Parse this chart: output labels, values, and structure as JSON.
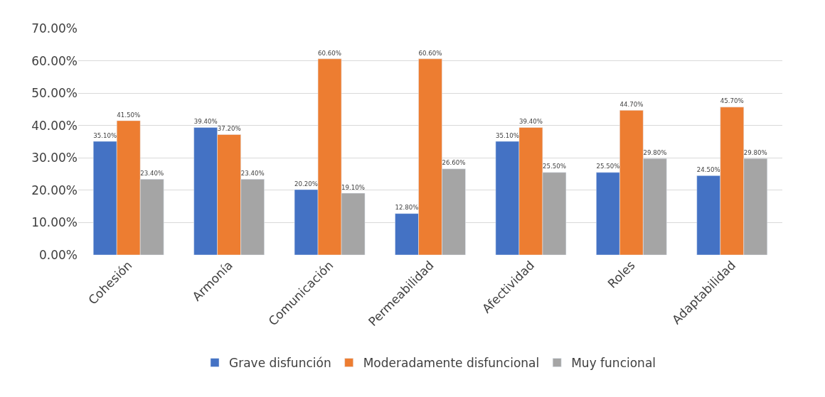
{
  "chart_data": {
    "type": "bar",
    "categories": [
      "Cohesión",
      "Armonía",
      "Comunicación",
      "Permeabilidad",
      "Afectividad",
      "Roles",
      "Adaptabilidad"
    ],
    "series": [
      {
        "name": "Grave disfunción",
        "color": "#4472c4",
        "values": [
          35.1,
          39.4,
          20.2,
          12.8,
          35.1,
          25.5,
          24.5
        ],
        "value_labels": [
          "35.10%",
          "39.40%",
          "20.20%",
          "12.80%",
          "35.10%",
          "25.50%",
          "24.50%"
        ]
      },
      {
        "name": "Moderadamente disfuncional",
        "color": "#ed7d31",
        "values": [
          41.5,
          37.2,
          60.6,
          60.6,
          39.4,
          44.7,
          45.7
        ],
        "value_labels": [
          "41.50%",
          "37.20%",
          "60.60%",
          "60.60%",
          "39.40%",
          "44.70%",
          "45.70%"
        ]
      },
      {
        "name": "Muy funcional",
        "color": "#a5a5a5",
        "values": [
          23.4,
          23.4,
          19.1,
          26.6,
          25.5,
          29.8,
          29.8
        ],
        "value_labels": [
          "23.40%",
          "23.40%",
          "19.10%",
          "26.60%",
          "25.50%",
          "29.80%",
          "29.80%"
        ]
      }
    ],
    "ylim": [
      0,
      70
    ],
    "yticks": [
      {
        "value": 0,
        "label": "0.00%"
      },
      {
        "value": 10,
        "label": "10.00%"
      },
      {
        "value": 20,
        "label": "20.00%"
      },
      {
        "value": 30,
        "label": "30.00%"
      },
      {
        "value": 40,
        "label": "40.00%"
      },
      {
        "value": 50,
        "label": "50.00%"
      },
      {
        "value": 60,
        "label": "60.00%"
      },
      {
        "value": 70,
        "label": "70.00%"
      }
    ],
    "grid": "y",
    "legend": "bottom"
  }
}
